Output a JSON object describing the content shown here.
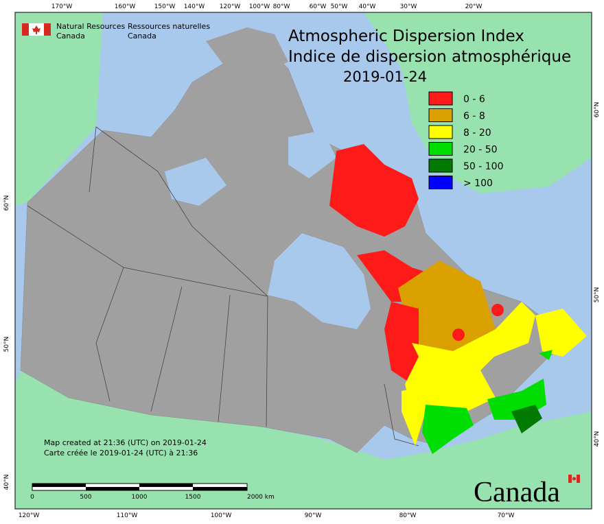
{
  "header": {
    "agency_en": [
      "Natural Resources",
      "Canada"
    ],
    "agency_fr": [
      "Ressources naturelles",
      "Canada"
    ]
  },
  "title": [
    "Atmospheric Dispersion Index",
    "Indice de dispersion atmosphérique",
    "2019-01-24"
  ],
  "legend": [
    {
      "label": "0 - 6",
      "color": "#ff1a1a"
    },
    {
      "label": "6 - 8",
      "color": "#d9a000"
    },
    {
      "label": "8 - 20",
      "color": "#ffff00"
    },
    {
      "label": "20 - 50",
      "color": "#00dd00"
    },
    {
      "label": "50 - 100",
      "color": "#007a00"
    },
    {
      "label": "> 100",
      "color": "#0000ff"
    }
  ],
  "graticule": {
    "top": [
      "170°W",
      "160°W",
      "150°W",
      "140°W",
      "120°W",
      "100°W",
      "80°W",
      "60°W",
      "50°W",
      "40°W",
      "30°W",
      "20°W"
    ],
    "bottom": [
      "120°W",
      "110°W",
      "100°W",
      "90°W",
      "80°W",
      "70°W"
    ],
    "left": [
      "60°N",
      "50°N",
      "40°N"
    ],
    "right": [
      "60°N",
      "50°N",
      "40°N"
    ]
  },
  "notes": [
    "Map created at 21:36 (UTC) on 2019-01-24",
    "Carte créée le 2019-01-24 (UTC) à 21:36"
  ],
  "scale_bar": [
    "0",
    "500",
    "1000",
    "1500",
    "2000 km"
  ],
  "wordmark": "Canada"
}
